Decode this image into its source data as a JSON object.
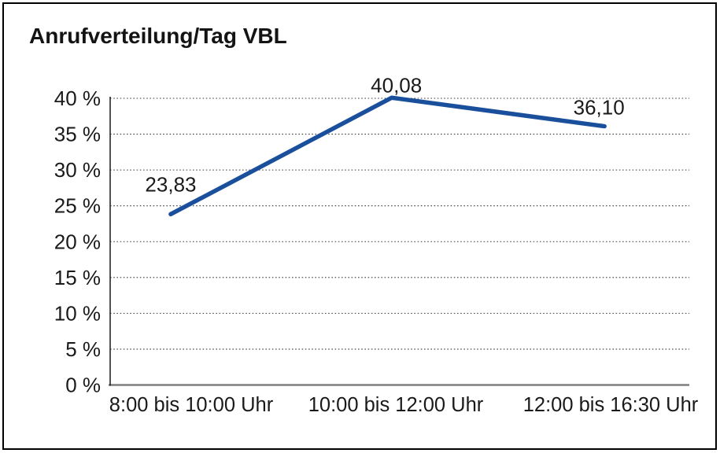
{
  "window": {
    "title": "Anrufverteilung/Tag VBL"
  },
  "chart_data": {
    "type": "line",
    "title": "Anrufverteilung/Tag VBL",
    "categories": [
      "8:00 bis 10:00 Uhr",
      "10:00 bis 12:00 Uhr",
      "12:00 bis 16:30 Uhr"
    ],
    "series": [
      {
        "values": [
          23.83,
          40.08,
          36.1
        ],
        "data_labels": [
          "23,83",
          "40,08",
          "36,10"
        ]
      }
    ],
    "xlabel": "",
    "ylabel": "",
    "ylim": [
      0,
      40
    ],
    "ytick_step": 5,
    "ytick_labels": [
      "0 %",
      "5 %",
      "10 %",
      "15 %",
      "20 %",
      "25 %",
      "30 %",
      "35 %",
      "40 %"
    ],
    "grid": "horizontal-dotted",
    "legend": "none",
    "markers": "none"
  },
  "colors": {
    "background": "#ffffff",
    "border": "#000000",
    "line": "#1a4f9c",
    "text": "#1a1a1a",
    "grid": "#3c3c3c",
    "x_axis": "#7f7f7f",
    "y_axis": "#262626"
  }
}
